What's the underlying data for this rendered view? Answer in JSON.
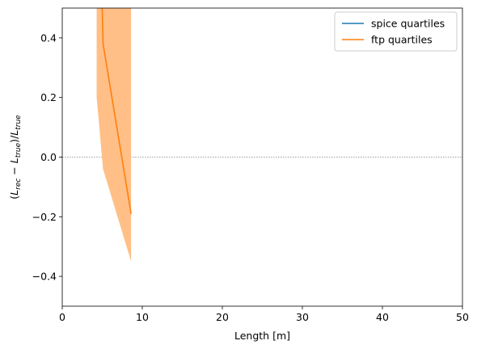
{
  "chart_data": {
    "type": "line",
    "title": "",
    "xlabel": "Length [m]",
    "ylabel_parts": {
      "open": "(",
      "L1": "L",
      "sub1": "rec",
      "minus": " − ",
      "L2": "L",
      "sub2": "true",
      "close": ")/",
      "L3": "L",
      "sub3": "true"
    },
    "xlim": [
      0,
      50
    ],
    "ylim": [
      -0.5,
      0.5
    ],
    "xticks": [
      0,
      10,
      20,
      30,
      40,
      50
    ],
    "xtick_labels": [
      "0",
      "10",
      "20",
      "30",
      "40",
      "50"
    ],
    "yticks": [
      -0.4,
      -0.2,
      0.0,
      0.2,
      0.4
    ],
    "ytick_labels": [
      "−0.4",
      "−0.2",
      "0.0",
      "0.2",
      "0.4"
    ],
    "grid": false,
    "reference_line": {
      "y": 0.0,
      "color": "#808080",
      "style": "dotted"
    },
    "legend_placement": "top-right",
    "series": [
      {
        "name": "spice quartiles",
        "color": "#1f77b4",
        "x": [],
        "y": []
      },
      {
        "name": "ftp quartiles",
        "color": "#ff7f0e",
        "band_color": "#ffbf86",
        "x": [
          4.9,
          5.1,
          8.6
        ],
        "y": [
          0.6,
          0.38,
          -0.19
        ],
        "band_x": [
          4.3,
          5.1,
          8.6
        ],
        "band_lower": [
          0.2,
          -0.04,
          -0.35
        ],
        "band_upper": [
          0.7,
          0.7,
          0.7
        ]
      }
    ]
  }
}
